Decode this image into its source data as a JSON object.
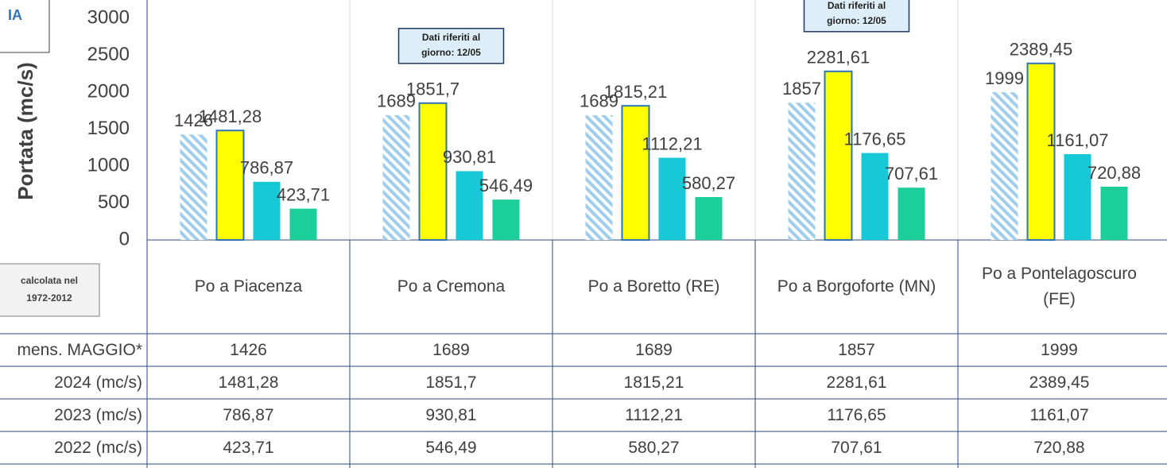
{
  "chart_data": {
    "type": "bar",
    "corner_label": "IA",
    "ylabel": "Portata (mc/s)",
    "legend_note": [
      "calcolata nel",
      "1972-2012"
    ],
    "categories": [
      "Po a Piacenza",
      "Po a Cremona",
      "Po a Boretto (RE)",
      "Po a Borgoforte (MN)",
      "Po a Pontelagoscuro (FE)"
    ],
    "annotations": [
      null,
      [
        "Dati riferiti al",
        "giorno: 12/05"
      ],
      null,
      [
        "Dati riferiti al",
        "giorno: 12/05"
      ],
      null
    ],
    "series": [
      {
        "name": "mens. MAGGIO*",
        "color": "#9fcdee",
        "pattern": "hatch",
        "values": [
          1426,
          1689,
          1689,
          1857,
          1999
        ]
      },
      {
        "name": "2024 (mc/s)",
        "color": "#ffff00",
        "edge": "#2e75b6",
        "values": [
          1481.28,
          1851.7,
          1815.21,
          2281.61,
          2389.45
        ],
        "value_labels": [
          "1481,28",
          "1851,7",
          "1815,21",
          "2281,61",
          "2389,45"
        ]
      },
      {
        "name": "2023 (mc/s)",
        "color": "#17c9d6",
        "values": [
          786.87,
          930.81,
          1112.21,
          1176.65,
          1161.07
        ],
        "value_labels": [
          "786,87",
          "930,81",
          "1112,21",
          "1176,65",
          "1161,07"
        ]
      },
      {
        "name": "2022 (mc/s)",
        "color": "#1ccf9a",
        "values": [
          423.71,
          546.49,
          580.27,
          707.61,
          720.88
        ],
        "value_labels": [
          "423,71",
          "546,49",
          "580,27",
          "707,61",
          "720,88"
        ]
      }
    ],
    "ylim": [
      0,
      3000
    ],
    "yticks": [
      0,
      500,
      1000,
      1500,
      2000,
      2500,
      3000
    ]
  }
}
